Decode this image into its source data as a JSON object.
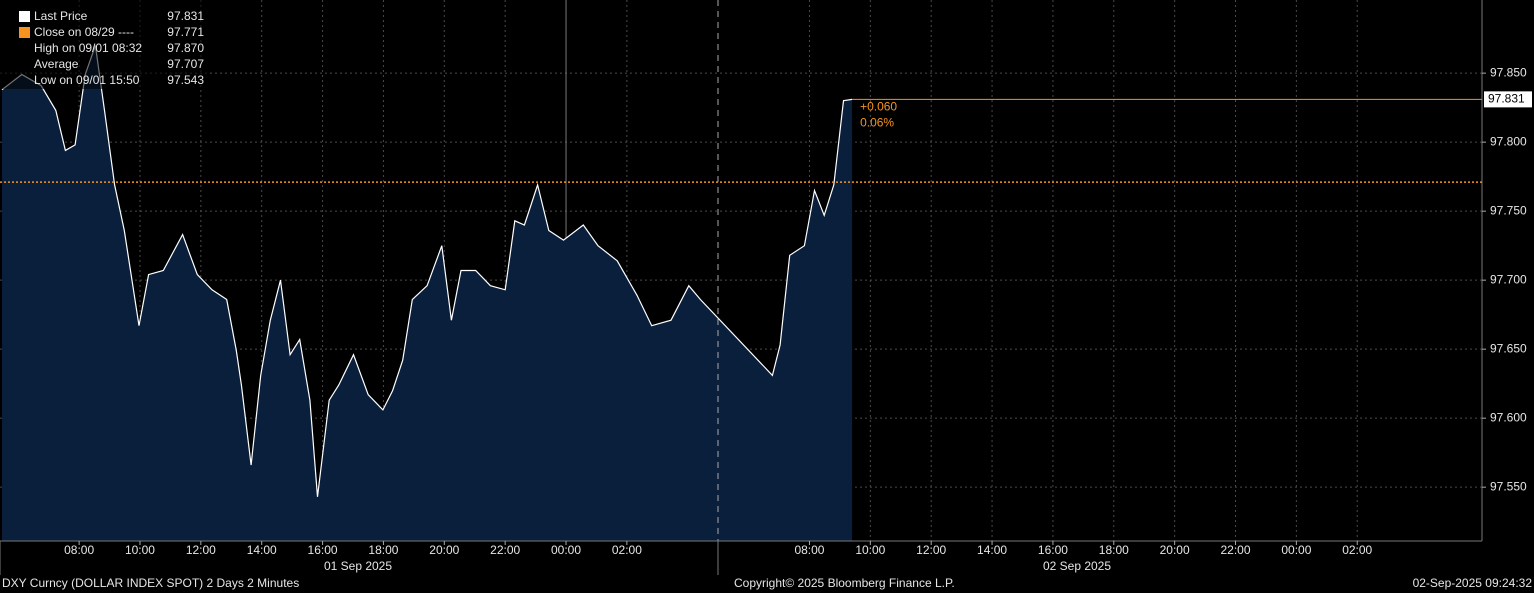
{
  "chart_data": {
    "type": "area",
    "x": [
      "2025-09-01T05:28",
      "2025-09-01T06:07",
      "2025-09-01T06:45",
      "2025-09-01T07:14",
      "2025-09-01T07:33",
      "2025-09-01T07:52",
      "2025-09-01T08:12",
      "2025-09-01T08:32",
      "2025-09-01T08:50",
      "2025-09-01T09:10",
      "2025-09-01T09:29",
      "2025-09-01T09:58",
      "2025-09-01T10:17",
      "2025-09-01T10:46",
      "2025-09-01T11:24",
      "2025-09-01T11:53",
      "2025-09-01T12:22",
      "2025-09-01T12:51",
      "2025-09-01T13:10",
      "2025-09-01T13:20",
      "2025-09-01T13:39",
      "2025-09-01T13:58",
      "2025-09-01T14:17",
      "2025-09-01T14:37",
      "2025-09-01T14:56",
      "2025-09-01T15:15",
      "2025-09-01T15:35",
      "2025-09-01T15:50",
      "2025-09-01T16:13",
      "2025-09-01T16:32",
      "2025-09-01T17:01",
      "2025-09-01T17:30",
      "2025-09-01T17:59",
      "2025-09-01T18:18",
      "2025-09-01T18:38",
      "2025-09-01T18:57",
      "2025-09-01T19:26",
      "2025-09-01T19:55",
      "2025-09-01T20:14",
      "2025-09-01T20:33",
      "2025-09-01T21:02",
      "2025-09-01T21:31",
      "2025-09-01T22:00",
      "2025-09-01T22:19",
      "2025-09-01T22:38",
      "2025-09-01T23:04",
      "2025-09-01T23:26",
      "2025-09-01T23:55",
      "2025-09-02T00:34",
      "2025-09-02T01:03",
      "2025-09-02T01:41",
      "2025-09-02T02:20",
      "2025-09-02T02:49",
      "2025-09-02T03:27",
      "2025-09-02T04:02",
      "2025-09-02T04:25",
      "2025-09-02T06:47",
      "2025-09-02T07:02",
      "2025-09-02T07:21",
      "2025-09-02T07:50",
      "2025-09-02T08:10",
      "2025-09-02T08:29",
      "2025-09-02T08:48",
      "2025-09-02T09:07",
      "2025-09-02T09:24"
    ],
    "series": [
      {
        "name": "Last Price",
        "color": "#ffffff",
        "fill": "#0a1f3c",
        "values": [
          97.838,
          97.849,
          97.841,
          97.823,
          97.794,
          97.798,
          97.849,
          97.87,
          97.823,
          97.769,
          97.736,
          97.667,
          97.704,
          97.707,
          97.733,
          97.704,
          97.693,
          97.686,
          97.649,
          97.624,
          97.566,
          97.631,
          97.671,
          97.7,
          97.646,
          97.657,
          97.613,
          97.543,
          97.613,
          97.624,
          97.646,
          97.617,
          97.606,
          97.62,
          97.642,
          97.686,
          97.696,
          97.725,
          97.671,
          97.707,
          97.707,
          97.696,
          97.693,
          97.743,
          97.74,
          97.769,
          97.736,
          97.729,
          97.74,
          97.725,
          97.714,
          97.689,
          97.667,
          97.671,
          97.696,
          97.686,
          97.631,
          97.653,
          97.718,
          97.725,
          97.765,
          97.747,
          97.769,
          97.83,
          97.831
        ]
      }
    ],
    "reference_lines": [
      {
        "name": "Close on 08/29 ----",
        "value": 97.771,
        "color": "#f7931e"
      }
    ],
    "stats": [
      {
        "name": "High on 09/01 08:32",
        "value": 97.87,
        "value_label": "97.870"
      },
      {
        "name": "Average",
        "value": 97.707
      },
      {
        "name": "Low on 09/01 15:50",
        "value": 97.543
      }
    ],
    "change": {
      "value": 0.06,
      "label": "+0.060"
    },
    "change_pct": {
      "value": 0.06,
      "label": "0.06%"
    },
    "ylim": [
      97.511,
      97.903
    ],
    "yticks": [
      {
        "value": 97.55,
        "label": "97.550"
      },
      {
        "value": 97.6,
        "label": "97.600"
      },
      {
        "value": 97.65,
        "label": "97.650"
      },
      {
        "value": 97.7,
        "label": "97.700"
      },
      {
        "value": 97.75,
        "label": "97.750"
      },
      {
        "value": 97.8,
        "label": "97.800"
      },
      {
        "value": 97.85,
        "label": "97.850"
      }
    ],
    "xlim": [
      "2025-09-01T05:24",
      "2025-09-03T06:06"
    ],
    "xticks": [
      {
        "value": "2025-09-01T08:00",
        "label": "08:00"
      },
      {
        "value": "2025-09-01T10:00",
        "label": "10:00"
      },
      {
        "value": "2025-09-01T12:00",
        "label": "12:00"
      },
      {
        "value": "2025-09-01T14:00",
        "label": "14:00"
      },
      {
        "value": "2025-09-01T16:00",
        "label": "16:00"
      },
      {
        "value": "2025-09-01T18:00",
        "label": "18:00"
      },
      {
        "value": "2025-09-01T20:00",
        "label": "20:00"
      },
      {
        "value": "2025-09-01T22:00",
        "label": "22:00"
      },
      {
        "value": "2025-09-02T00:00",
        "label": "00:00"
      },
      {
        "value": "2025-09-02T02:00",
        "label": "02:00"
      },
      {
        "value": "2025-09-02T08:00",
        "label": "08:00"
      },
      {
        "value": "2025-09-02T10:00",
        "label": "10:00"
      },
      {
        "value": "2025-09-02T12:00",
        "label": "12:00"
      },
      {
        "value": "2025-09-02T14:00",
        "label": "14:00"
      },
      {
        "value": "2025-09-02T16:00",
        "label": "16:00"
      },
      {
        "value": "2025-09-02T18:00",
        "label": "18:00"
      },
      {
        "value": "2025-09-02T20:00",
        "label": "20:00"
      },
      {
        "value": "2025-09-02T22:00",
        "label": "22:00"
      },
      {
        "value": "2025-09-03T00:00",
        "label": "00:00"
      },
      {
        "value": "2025-09-03T02:00",
        "label": "02:00"
      }
    ],
    "x_groups": [
      "01 Sep 2025",
      "02 Sep 2025"
    ],
    "grid": true,
    "footer": {
      "left": "DXY Curncy (DOLLAR INDEX SPOT) 2 Days 2 Minutes",
      "center": "Copyright© 2025 Bloomberg Finance L.P.",
      "right": "02-Sep-2025 09:24:32"
    }
  }
}
